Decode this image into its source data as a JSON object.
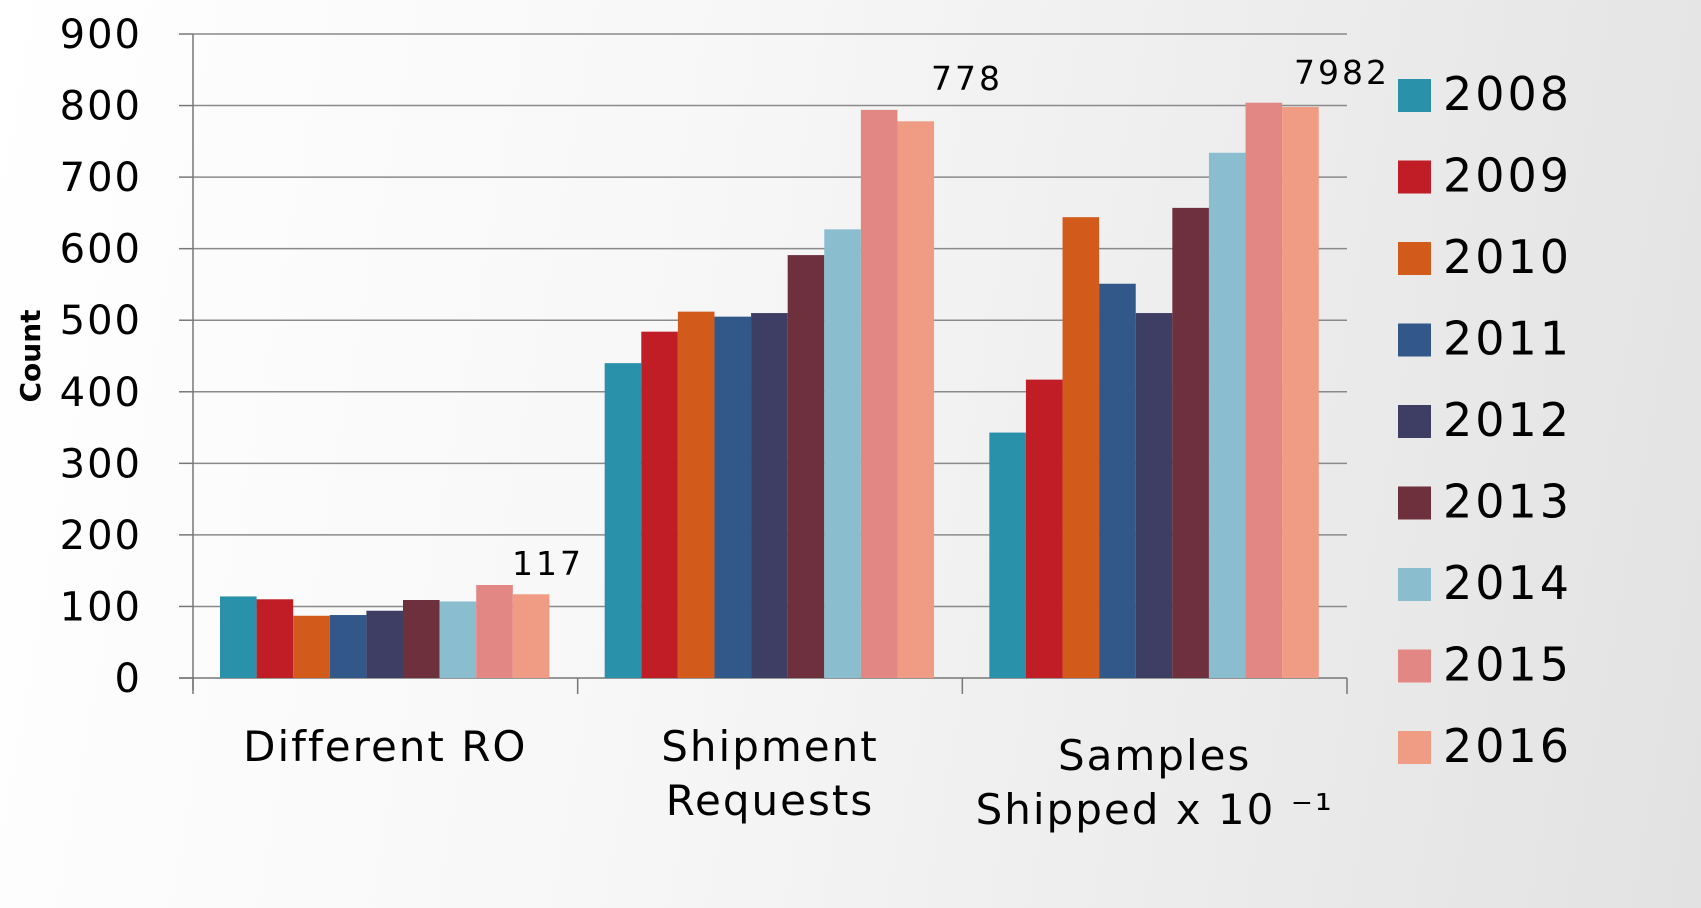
{
  "chart_data": {
    "type": "bar",
    "ylabel": "Count",
    "ylim": [
      0,
      900
    ],
    "yticks": [
      0,
      100,
      200,
      300,
      400,
      500,
      600,
      700,
      800,
      900
    ],
    "grid": true,
    "legend_position": "right",
    "categories": [
      [
        "Different RO"
      ],
      [
        "Shipment",
        "Requests"
      ],
      [
        "Samples",
        "Shipped x 10 ⁻¹"
      ]
    ],
    "series": [
      {
        "name": "2008",
        "color": "#2a91aa",
        "values": [
          114,
          440,
          343
        ]
      },
      {
        "name": "2009",
        "color": "#c01d27",
        "values": [
          110,
          484,
          417
        ]
      },
      {
        "name": "2010",
        "color": "#d25b1c",
        "values": [
          87,
          512,
          644
        ]
      },
      {
        "name": "2011",
        "color": "#325789",
        "values": [
          88,
          505,
          551
        ]
      },
      {
        "name": "2012",
        "color": "#3e3d63",
        "values": [
          94,
          510,
          510
        ]
      },
      {
        "name": "2013",
        "color": "#6e303c",
        "values": [
          109,
          591,
          657
        ]
      },
      {
        "name": "2014",
        "color": "#8abecf",
        "values": [
          107,
          627,
          734
        ]
      },
      {
        "name": "2015",
        "color": "#e38785",
        "values": [
          130,
          794,
          804
        ]
      },
      {
        "name": "2016",
        "color": "#f09b83",
        "values": [
          117,
          778,
          798
        ]
      }
    ],
    "annotations": [
      "117",
      "778",
      "7982"
    ]
  }
}
